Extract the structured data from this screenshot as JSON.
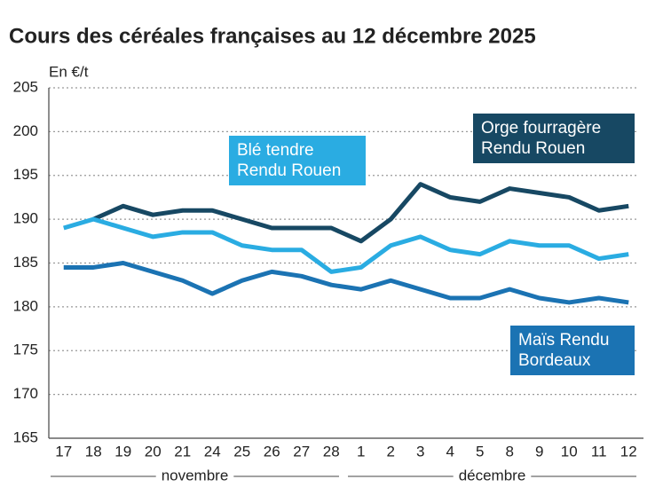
{
  "chart_data": {
    "type": "line",
    "title": "Cours des céréales françaises au 12 décembre 2025",
    "y_label": "En €/t",
    "categories": [
      "17",
      "18",
      "19",
      "20",
      "21",
      "24",
      "25",
      "26",
      "27",
      "28",
      "1",
      "2",
      "3",
      "4",
      "5",
      "8",
      "9",
      "10",
      "11",
      "12"
    ],
    "x_groups": [
      {
        "label": "novembre",
        "count": 10
      },
      {
        "label": "décembre",
        "count": 10
      }
    ],
    "series": [
      {
        "name": "Orge fourragère Rendu Rouen",
        "color": "#174863",
        "values": [
          null,
          190,
          191.5,
          190.5,
          191,
          191,
          190,
          189,
          189,
          189,
          187.5,
          190,
          194,
          192.5,
          192,
          193.5,
          193,
          192.5,
          191,
          191.5
        ]
      },
      {
        "name": "Blé tendre Rendu Rouen",
        "color": "#2aace2",
        "values": [
          189,
          190,
          189,
          188,
          188.5,
          188.5,
          187,
          186.5,
          186.5,
          184,
          184.5,
          187,
          188,
          186.5,
          186,
          187.5,
          187,
          187,
          185.5,
          186
        ]
      },
      {
        "name": "Maïs Rendu Bordeaux",
        "color": "#1b73b3",
        "values": [
          184.5,
          184.5,
          185,
          184,
          183,
          181.5,
          183,
          184,
          183.5,
          182.5,
          182,
          183,
          182,
          181,
          181,
          182,
          181,
          180.5,
          181,
          180.5
        ]
      }
    ],
    "ylim": [
      165,
      205
    ],
    "yticks": [
      165,
      170,
      175,
      180,
      185,
      190,
      195,
      200,
      205
    ],
    "grid": true
  }
}
